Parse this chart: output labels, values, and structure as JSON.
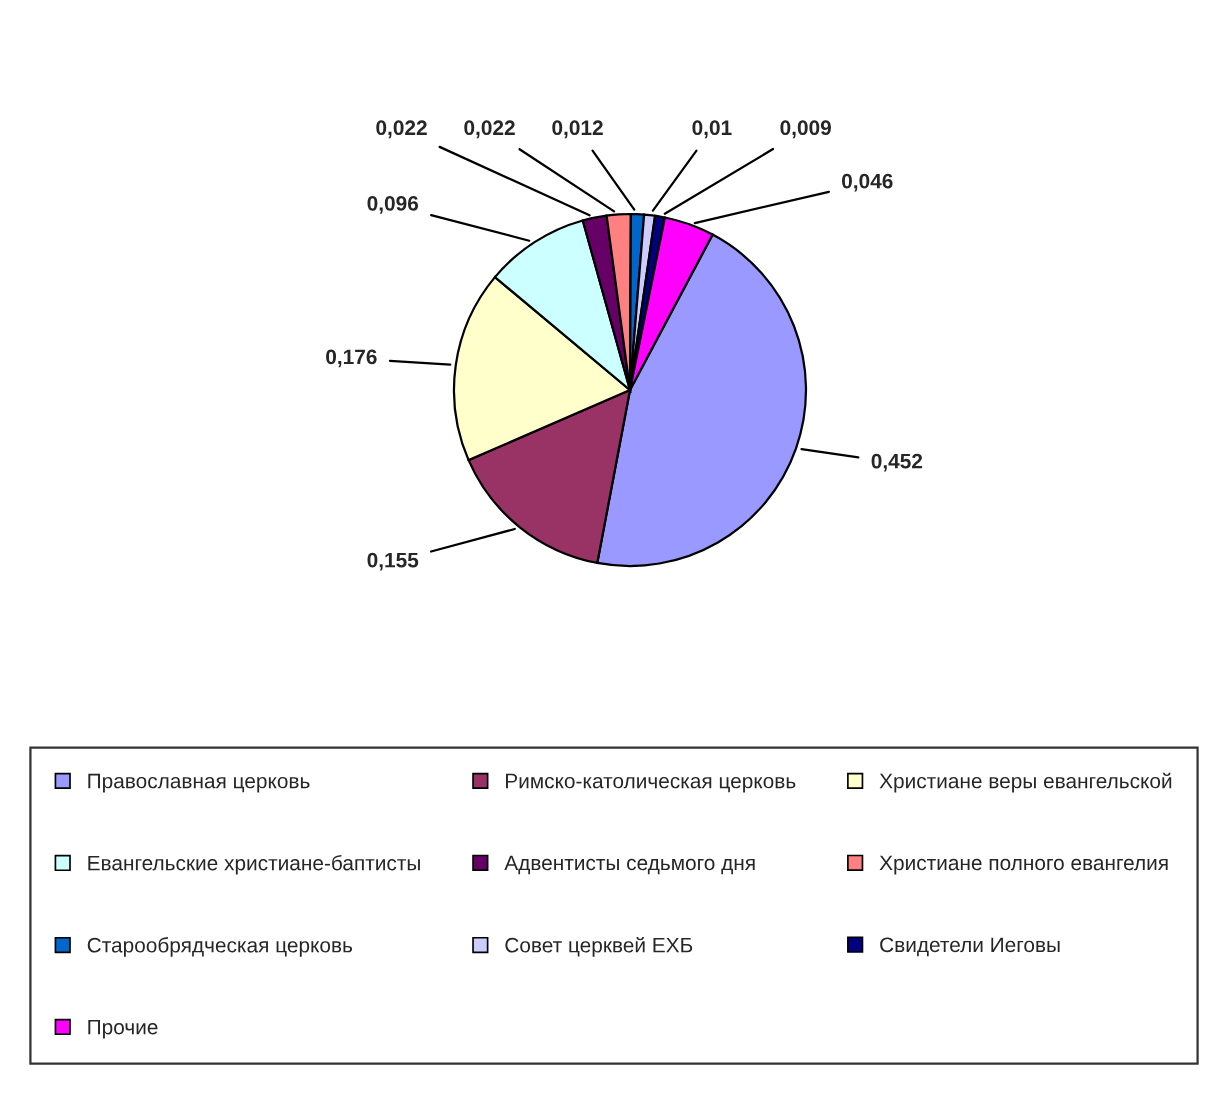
{
  "chart_data": {
    "type": "pie",
    "categories": [
      "Православная церковь",
      "Римско-католическая церковь",
      "Христиане веры евангельской",
      "Евангельские христиане-баптисты",
      "Адвентисты седьмого дня",
      "Христиане полного евангелия",
      "Старообрядческая церковь",
      "Совет церквей ЕХБ",
      "Свидетели Иеговы",
      "Прочие"
    ],
    "values": [
      0.452,
      0.155,
      0.176,
      0.096,
      0.022,
      0.022,
      0.012,
      0.01,
      0.009,
      0.046
    ],
    "value_labels": [
      "0,452",
      "0,155",
      "0,176",
      "0,096",
      "0,022",
      "0,022",
      "0,012",
      "0,01",
      "0,009",
      "0,046"
    ],
    "colors": [
      "#9999ff",
      "#993366",
      "#ffffcc",
      "#ccffff",
      "#660066",
      "#ff8080",
      "#0066cc",
      "#ccccff",
      "#000080",
      "#ff00ff"
    ],
    "legend": "bottom"
  }
}
